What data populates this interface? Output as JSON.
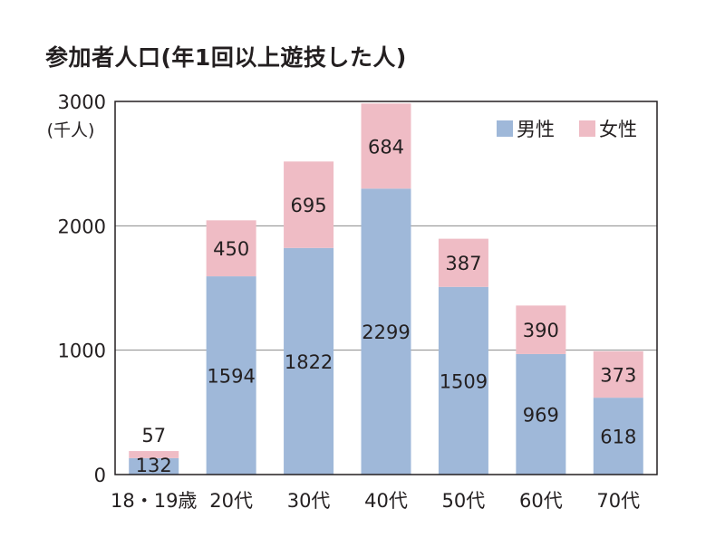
{
  "chart_data": {
    "type": "bar",
    "stacked": true,
    "title": "参加者人口(年1回以上遊技した人)",
    "unit_label": "(千人)",
    "categories": [
      "18・19歳",
      "20代",
      "30代",
      "40代",
      "50代",
      "60代",
      "70代"
    ],
    "series": [
      {
        "name": "男性",
        "values": [
          132,
          1594,
          1822,
          2299,
          1509,
          969,
          618
        ],
        "color": "#9fb8d9"
      },
      {
        "name": "女性",
        "values": [
          57,
          450,
          695,
          684,
          387,
          390,
          373
        ],
        "color": "#efbcc5"
      }
    ],
    "ylim": [
      0,
      3000
    ],
    "yticks": [
      0,
      1000,
      2000,
      3000
    ],
    "grid": true,
    "legend_position": "top-right"
  }
}
